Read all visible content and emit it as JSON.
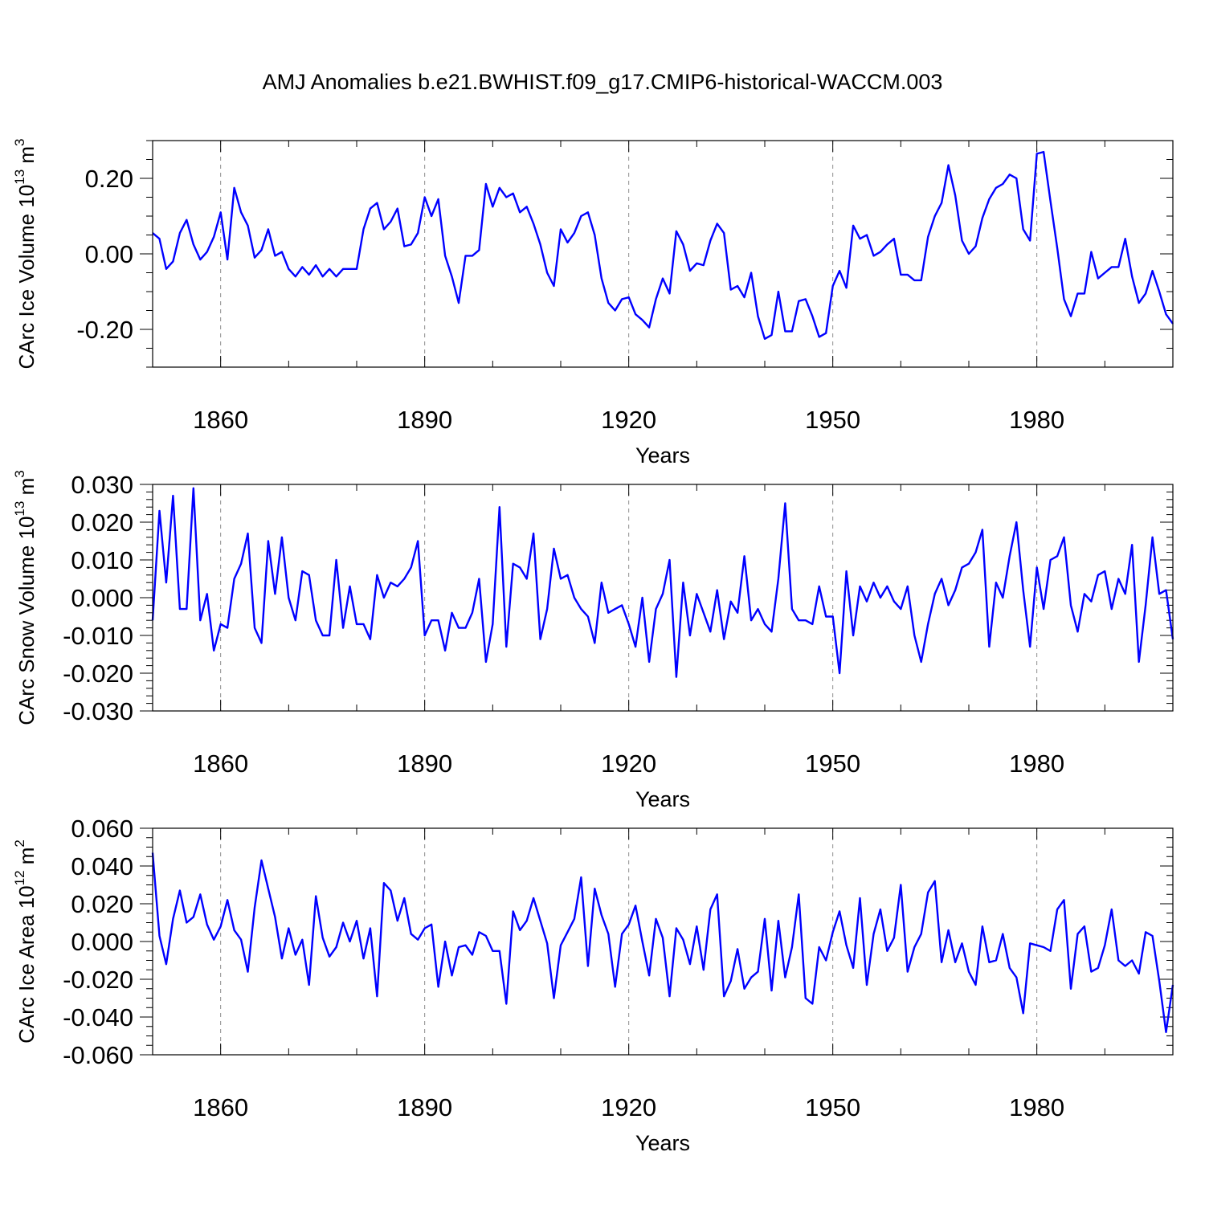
{
  "title": "AMJ Anomalies b.e21.BWHIST.f09_g17.CMIP6-historical-WACCM.003",
  "chart_data": [
    {
      "type": "line",
      "ylabel": "CArc Ice Volume 10",
      "ylabel_exp": "13",
      "ylabel_unit": " m",
      "ylabel_unit_exp": "3",
      "xlabel": "Years",
      "xlim": [
        1850,
        2000
      ],
      "ylim": [
        -0.3,
        0.3
      ],
      "yticks": [
        -0.2,
        0.0,
        0.2
      ],
      "ytick_labels": [
        "-0.20",
        "0.00",
        "0.20"
      ],
      "yminor": 0.05,
      "xticks": [
        1860,
        1890,
        1920,
        1950,
        1980
      ],
      "xtick_labels": [
        "1860",
        "1890",
        "1920",
        "1950",
        "1980"
      ],
      "line_color": "#0000ff",
      "x_start": 1850,
      "values": [
        0.055,
        0.04,
        -0.04,
        -0.02,
        0.055,
        0.09,
        0.025,
        -0.015,
        0.005,
        0.045,
        0.11,
        -0.015,
        0.175,
        0.11,
        0.075,
        -0.01,
        0.01,
        0.065,
        -0.005,
        0.005,
        -0.04,
        -0.06,
        -0.035,
        -0.055,
        -0.03,
        -0.06,
        -0.04,
        -0.06,
        -0.04,
        -0.04,
        -0.04,
        0.065,
        0.12,
        0.135,
        0.065,
        0.085,
        0.12,
        0.02,
        0.025,
        0.055,
        0.15,
        0.1,
        0.145,
        -0.005,
        -0.06,
        -0.13,
        -0.005,
        -0.005,
        0.01,
        0.185,
        0.125,
        0.175,
        0.15,
        0.16,
        0.11,
        0.125,
        0.08,
        0.025,
        -0.05,
        -0.085,
        0.065,
        0.03,
        0.055,
        0.1,
        0.11,
        0.05,
        -0.065,
        -0.13,
        -0.15,
        -0.12,
        -0.115,
        -0.16,
        -0.175,
        -0.195,
        -0.12,
        -0.065,
        -0.105,
        0.06,
        0.025,
        -0.045,
        -0.025,
        -0.03,
        0.035,
        0.08,
        0.055,
        -0.095,
        -0.085,
        -0.115,
        -0.05,
        -0.165,
        -0.225,
        -0.215,
        -0.1,
        -0.205,
        -0.205,
        -0.125,
        -0.12,
        -0.165,
        -0.22,
        -0.21,
        -0.085,
        -0.045,
        -0.09,
        0.075,
        0.04,
        0.05,
        -0.005,
        0.005,
        0.025,
        0.04,
        -0.055,
        -0.055,
        -0.07,
        -0.07,
        0.045,
        0.1,
        0.135,
        0.235,
        0.155,
        0.035,
        0.0,
        0.02,
        0.095,
        0.145,
        0.175,
        0.185,
        0.21,
        0.2,
        0.065,
        0.035,
        0.265,
        0.27,
        0.14,
        0.015,
        -0.12,
        -0.165,
        -0.105,
        -0.105,
        0.005,
        -0.065,
        -0.05,
        -0.035,
        -0.035,
        0.04,
        -0.06,
        -0.13,
        -0.105,
        -0.045,
        -0.1,
        -0.16,
        -0.185
      ]
    },
    {
      "type": "line",
      "ylabel": "CArc Snow Volume 10",
      "ylabel_exp": "13",
      "ylabel_unit": " m",
      "ylabel_unit_exp": "3",
      "xlabel": "Years",
      "xlim": [
        1850,
        2000
      ],
      "ylim": [
        -0.03,
        0.03
      ],
      "yticks": [
        -0.03,
        -0.02,
        -0.01,
        0.0,
        0.01,
        0.02,
        0.03
      ],
      "ytick_labels": [
        "-0.030",
        "-0.020",
        "-0.010",
        "0.000",
        "0.010",
        "0.020",
        "0.030"
      ],
      "yminor": 0.002,
      "xticks": [
        1860,
        1890,
        1920,
        1950,
        1980
      ],
      "xtick_labels": [
        "1860",
        "1890",
        "1920",
        "1950",
        "1980"
      ],
      "line_color": "#0000ff",
      "x_start": 1850,
      "values": [
        -0.006,
        0.023,
        0.004,
        0.027,
        -0.003,
        -0.003,
        0.029,
        -0.006,
        0.001,
        -0.014,
        -0.007,
        -0.008,
        0.005,
        0.009,
        0.017,
        -0.008,
        -0.012,
        0.015,
        0.001,
        0.016,
        0.0,
        -0.006,
        0.007,
        0.006,
        -0.006,
        -0.01,
        -0.01,
        0.01,
        -0.008,
        0.003,
        -0.007,
        -0.007,
        -0.011,
        0.006,
        0.0,
        0.004,
        0.003,
        0.005,
        0.008,
        0.015,
        -0.01,
        -0.006,
        -0.006,
        -0.014,
        -0.004,
        -0.008,
        -0.008,
        -0.004,
        0.005,
        -0.017,
        -0.007,
        0.024,
        -0.013,
        0.009,
        0.008,
        0.005,
        0.017,
        -0.011,
        -0.003,
        0.013,
        0.005,
        0.006,
        0.0,
        -0.003,
        -0.005,
        -0.012,
        0.004,
        -0.004,
        -0.003,
        -0.002,
        -0.007,
        -0.013,
        0.0,
        -0.017,
        -0.003,
        0.001,
        0.01,
        -0.021,
        0.004,
        -0.01,
        0.001,
        -0.004,
        -0.009,
        0.002,
        -0.011,
        -0.001,
        -0.004,
        0.011,
        -0.006,
        -0.003,
        -0.007,
        -0.009,
        0.005,
        0.025,
        -0.003,
        -0.006,
        -0.006,
        -0.007,
        0.003,
        -0.005,
        -0.005,
        -0.02,
        0.007,
        -0.01,
        0.003,
        -0.001,
        0.004,
        0.0,
        0.003,
        -0.001,
        -0.003,
        0.003,
        -0.01,
        -0.017,
        -0.007,
        0.001,
        0.005,
        -0.002,
        0.002,
        0.008,
        0.009,
        0.012,
        0.018,
        -0.013,
        0.004,
        0.0,
        0.011,
        0.02,
        0.002,
        -0.013,
        0.008,
        -0.003,
        0.01,
        0.011,
        0.016,
        -0.002,
        -0.009,
        0.001,
        -0.001,
        0.006,
        0.007,
        -0.003,
        0.005,
        0.001,
        0.014,
        -0.017,
        -0.002,
        0.016,
        0.001,
        0.002,
        -0.011
      ]
    },
    {
      "type": "line",
      "ylabel": "CArc Ice Area 10",
      "ylabel_exp": "12",
      "ylabel_unit": " m",
      "ylabel_unit_exp": "2",
      "xlabel": "Years",
      "xlim": [
        1850,
        2000
      ],
      "ylim": [
        -0.06,
        0.06
      ],
      "yticks": [
        -0.06,
        -0.04,
        -0.02,
        0.0,
        0.02,
        0.04,
        0.06
      ],
      "ytick_labels": [
        "-0.060",
        "-0.040",
        "-0.020",
        "0.000",
        "0.020",
        "0.040",
        "0.060"
      ],
      "yminor": 0.005,
      "xticks": [
        1860,
        1890,
        1920,
        1950,
        1980
      ],
      "xtick_labels": [
        "1860",
        "1890",
        "1920",
        "1950",
        "1980"
      ],
      "line_color": "#0000ff",
      "x_start": 1850,
      "values": [
        0.047,
        0.003,
        -0.012,
        0.012,
        0.027,
        0.01,
        0.013,
        0.025,
        0.009,
        0.001,
        0.008,
        0.022,
        0.006,
        0.001,
        -0.016,
        0.018,
        0.043,
        0.028,
        0.013,
        -0.009,
        0.007,
        -0.007,
        0.001,
        -0.023,
        0.024,
        0.002,
        -0.008,
        -0.003,
        0.01,
        0.0,
        0.011,
        -0.009,
        0.007,
        -0.029,
        0.031,
        0.027,
        0.011,
        0.023,
        0.004,
        0.001,
        0.007,
        0.009,
        -0.024,
        0.0,
        -0.018,
        -0.003,
        -0.002,
        -0.007,
        0.005,
        0.003,
        -0.005,
        -0.005,
        -0.033,
        0.016,
        0.006,
        0.011,
        0.023,
        0.011,
        -0.001,
        -0.03,
        -0.002,
        0.005,
        0.012,
        0.034,
        -0.013,
        0.028,
        0.014,
        0.004,
        -0.024,
        0.004,
        0.009,
        0.019,
        0.0,
        -0.018,
        0.012,
        0.002,
        -0.029,
        0.007,
        0.001,
        -0.012,
        0.008,
        -0.015,
        0.017,
        0.025,
        -0.029,
        -0.021,
        -0.004,
        -0.025,
        -0.019,
        -0.016,
        0.012,
        -0.026,
        0.011,
        -0.019,
        -0.003,
        0.025,
        -0.03,
        -0.033,
        -0.003,
        -0.01,
        0.005,
        0.016,
        -0.002,
        -0.014,
        0.023,
        -0.023,
        0.004,
        0.017,
        -0.005,
        0.002,
        0.03,
        -0.016,
        -0.003,
        0.004,
        0.026,
        0.032,
        -0.011,
        0.006,
        -0.011,
        -0.001,
        -0.016,
        -0.023,
        0.008,
        -0.011,
        -0.01,
        0.004,
        -0.014,
        -0.019,
        -0.038,
        -0.001,
        -0.002,
        -0.003,
        -0.005,
        0.017,
        0.022,
        -0.025,
        0.004,
        0.008,
        -0.016,
        -0.014,
        -0.002,
        0.017,
        -0.01,
        -0.013,
        -0.01,
        -0.017,
        0.005,
        0.003,
        -0.021,
        -0.048,
        -0.023
      ]
    }
  ]
}
